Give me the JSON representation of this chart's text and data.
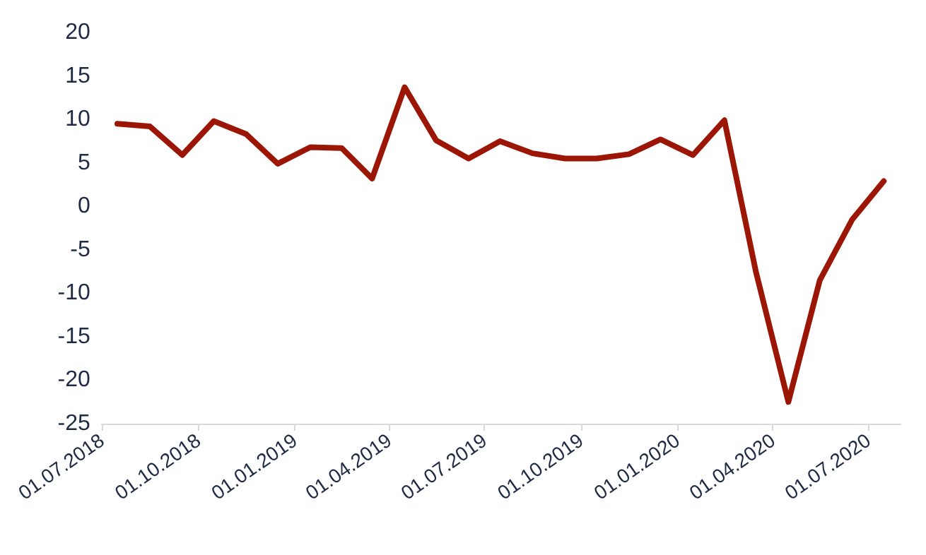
{
  "chart_data": {
    "type": "line",
    "x": [
      "2018-07-16",
      "2018-08-16",
      "2018-09-16",
      "2018-10-16",
      "2018-11-16",
      "2018-12-16",
      "2019-01-16",
      "2019-02-15",
      "2019-03-16",
      "2019-04-16",
      "2019-05-16",
      "2019-06-16",
      "2019-07-16",
      "2019-08-16",
      "2019-09-16",
      "2019-10-16",
      "2019-11-16",
      "2019-12-16",
      "2020-01-16",
      "2020-02-15",
      "2020-03-16",
      "2020-04-16",
      "2020-05-16",
      "2020-06-16",
      "2020-07-16"
    ],
    "series": [
      {
        "color": "#9c1606",
        "values": [
          9.5,
          9.2,
          5.9,
          9.8,
          8.3,
          4.9,
          6.8,
          6.7,
          3.2,
          13.7,
          7.6,
          5.5,
          7.5,
          6.1,
          5.5,
          5.5,
          6.0,
          7.7,
          5.9,
          9.9,
          -7.5,
          -22.5,
          -8.5,
          -1.5,
          2.9
        ]
      }
    ],
    "xlim": [
      "2018-07-01",
      "2020-08-01"
    ],
    "xticks": [
      {
        "value": "2018-07-01",
        "label": "01.07.2018"
      },
      {
        "value": "2018-10-01",
        "label": "01.10.2018"
      },
      {
        "value": "2019-01-01",
        "label": "01.01.2019"
      },
      {
        "value": "2019-04-01",
        "label": "01.04.2019"
      },
      {
        "value": "2019-07-01",
        "label": "01.07.2019"
      },
      {
        "value": "2019-10-01",
        "label": "01.10.2019"
      },
      {
        "value": "2020-01-01",
        "label": "01.01.2020"
      },
      {
        "value": "2020-04-01",
        "label": "01.04.2020"
      },
      {
        "value": "2020-07-01",
        "label": "01.07.2020"
      }
    ],
    "ylim": [
      -25,
      20
    ],
    "yticks": [
      -25,
      -20,
      -15,
      -10,
      -5,
      0,
      5,
      10,
      15,
      20
    ],
    "grid": false,
    "marker": "none",
    "line_style": "solid"
  }
}
